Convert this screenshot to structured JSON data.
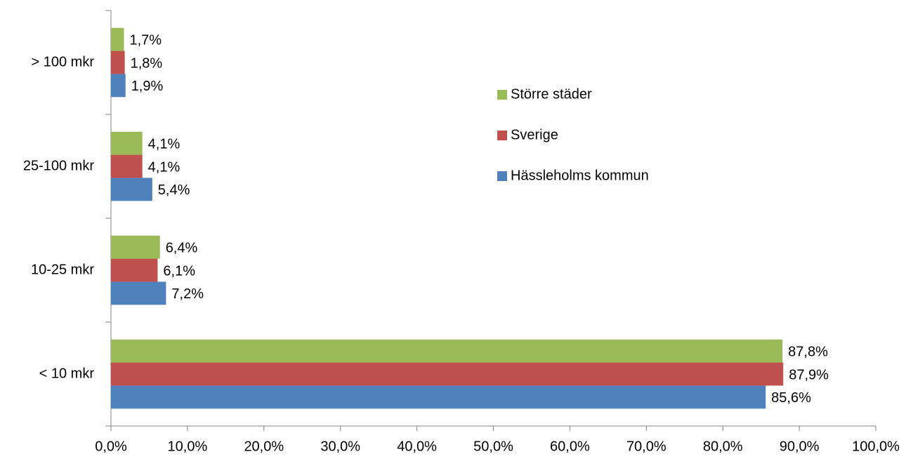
{
  "chart_data": {
    "type": "hbar",
    "categories": [
      "< 10 mkr",
      "10-25 mkr",
      "25-100 mkr",
      "> 100 mkr"
    ],
    "series": [
      {
        "name": "Hässleholms kommun",
        "color": "#4f81bd",
        "values": [
          85.6,
          7.2,
          5.4,
          1.9
        ],
        "value_labels": [
          "85,6%",
          "7,2%",
          "5,4%",
          "1,9%"
        ]
      },
      {
        "name": "Sverige",
        "color": "#c0504d",
        "values": [
          87.9,
          6.1,
          4.1,
          1.8
        ],
        "value_labels": [
          "87,9%",
          "6,1%",
          "4,1%",
          "1,8%"
        ]
      },
      {
        "name": "Större städer",
        "color": "#9bbb59",
        "values": [
          87.8,
          6.4,
          4.1,
          1.7
        ],
        "value_labels": [
          "87,8%",
          "6,4%",
          "4,1%",
          "1,7%"
        ]
      }
    ],
    "xlim": [
      0,
      100
    ],
    "xticks": [
      {
        "value": 0,
        "label": "0,0%"
      },
      {
        "value": 10,
        "label": "10,0%"
      },
      {
        "value": 20,
        "label": "20,0%"
      },
      {
        "value": 30,
        "label": "30,0%"
      },
      {
        "value": 40,
        "label": "40,0%"
      },
      {
        "value": 50,
        "label": "50,0%"
      },
      {
        "value": 60,
        "label": "60,0%"
      },
      {
        "value": 70,
        "label": "70,0%"
      },
      {
        "value": 80,
        "label": "80,0%"
      },
      {
        "value": 90,
        "label": "90,0%"
      },
      {
        "value": 100,
        "label": "100,0%"
      }
    ],
    "legend": "right"
  }
}
